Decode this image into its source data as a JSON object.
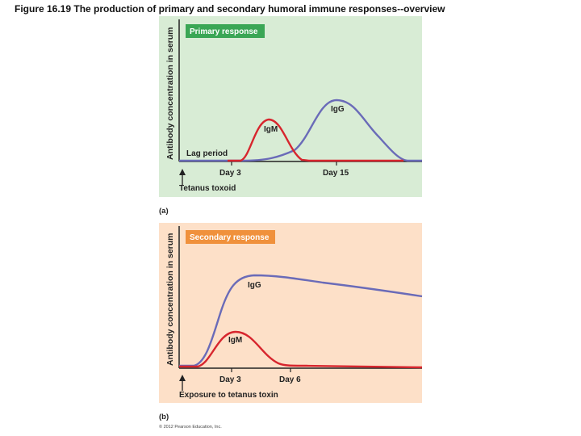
{
  "figure_title": "Figure 16.19 The production of primary and secondary humoral immune responses--overview",
  "copyright": "© 2012 Pearson Education, Inc.",
  "colors": {
    "primary_panel_bg": "#d8ecd5",
    "primary_badge": "#3aa655",
    "secondary_panel_bg": "#fde0c8",
    "secondary_badge": "#f0913c",
    "igg_curve": "#6a6bb8",
    "igm_curve": "#d7262e",
    "axis": "#222222"
  },
  "panel_a": {
    "badge": "Primary response",
    "y_axis_label": "Antibody concentration in serum",
    "lag_label": "Lag period",
    "igm_label": "IgM",
    "igg_label": "IgG",
    "tick_day3": "Day 3",
    "tick_day15": "Day 15",
    "antigen_label": "Tetanus toxoid",
    "panel_letter": "(a)"
  },
  "panel_b": {
    "badge": "Secondary response",
    "y_axis_label": "Antibody concentration in serum",
    "igg_label": "IgG",
    "igm_label": "IgM",
    "tick_day3": "Day 3",
    "tick_day6": "Day 6",
    "antigen_label": "Exposure to tetanus toxin",
    "panel_letter": "(b)"
  }
}
